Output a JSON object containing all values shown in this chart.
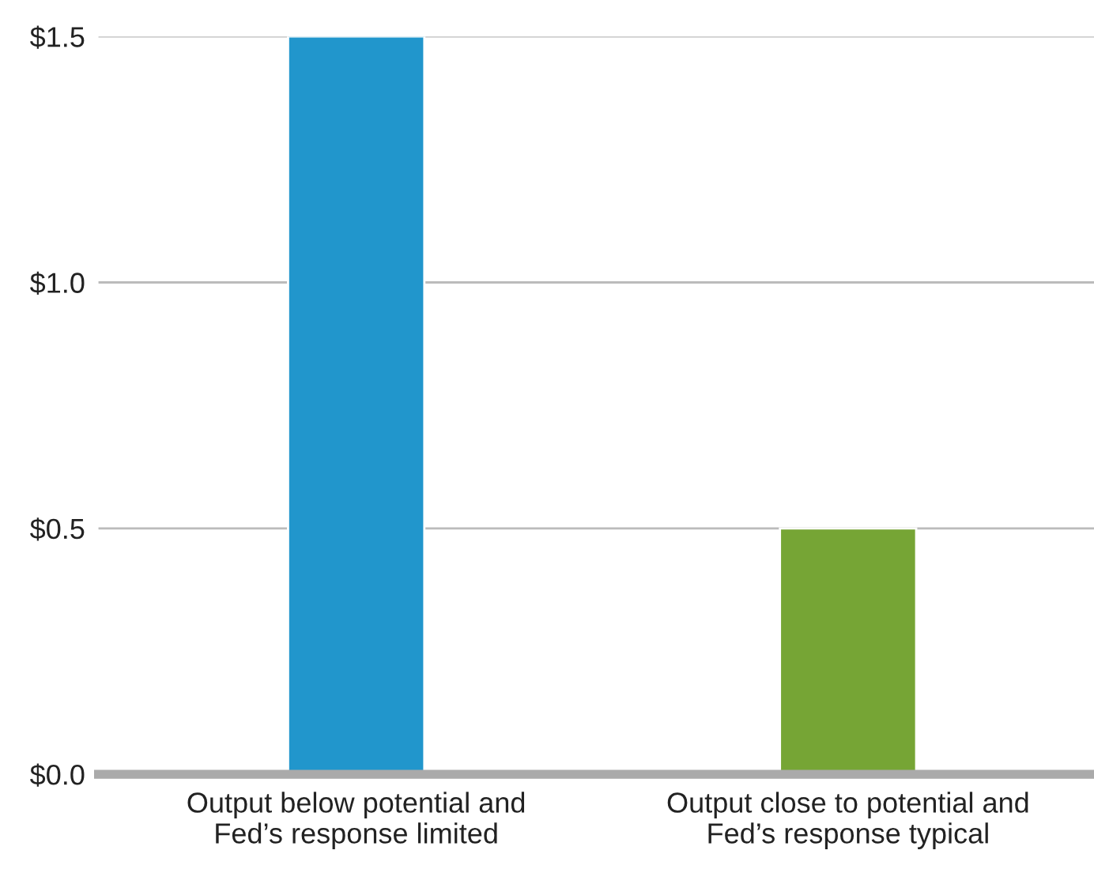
{
  "chart_data": {
    "type": "bar",
    "categories": [
      "Output below potential and\nFed’s response limited",
      "Output close to potential and\nFed’s response typical"
    ],
    "values": [
      1.5,
      0.5
    ],
    "colors": [
      "#2196cc",
      "#76a535"
    ],
    "ylim": [
      0,
      1.5
    ],
    "yticks": [
      {
        "value": 0,
        "label": "$0.0"
      },
      {
        "value": 0.5,
        "label": "$0.5"
      },
      {
        "value": 1.0,
        "label": "$1.0"
      },
      {
        "value": 1.5,
        "label": "$1.5"
      }
    ],
    "grid": "y"
  }
}
